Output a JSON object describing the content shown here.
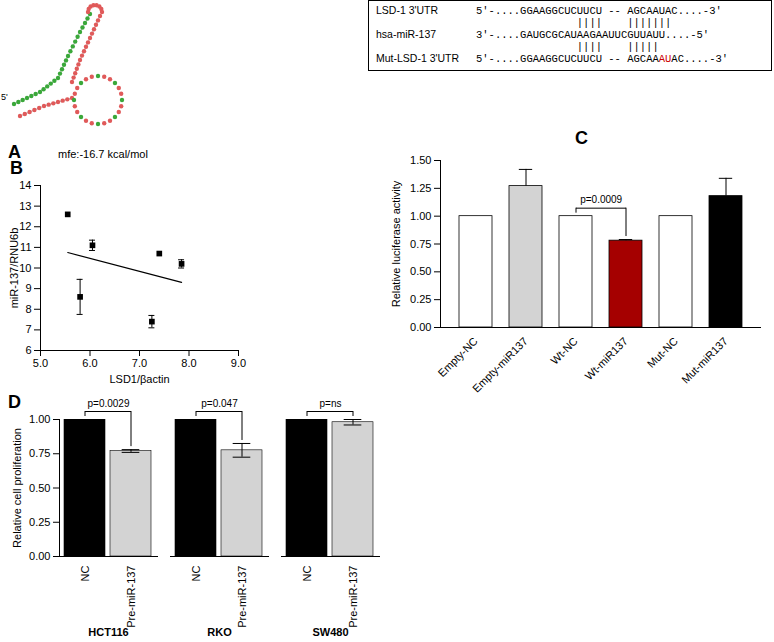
{
  "chart_data": [
    {
      "type": "diagram",
      "title": "A",
      "structure_label": "5'",
      "mfe": "mfe:-16.7 kcal/mol",
      "alignment": [
        {
          "label": "LSD-1 3'UTR",
          "segments": [
            {
              "text": "5'-....GGAAGGCUCUUCU -- AGCAAUAC....-3'",
              "color": "#000000"
            }
          ]
        },
        {
          "pairs": [
            "||||",
            "|||||||"
          ]
        },
        {
          "label": "hsa-miR-137",
          "segments": [
            {
              "text": "3'-....GAUGCGCAUAAGAAUUCGUUAUU....-5'",
              "color": "#000000"
            }
          ]
        },
        {
          "pairs": [
            "||||",
            "|||||"
          ]
        },
        {
          "label": "Mut-LSD-1 3'UTR",
          "segments": [
            {
              "text": "5'-....GGAAGGCUCUUCU -- AGCAA",
              "color": "#000000"
            },
            {
              "text": "AU",
              "color": "#cc0000"
            },
            {
              "text": "AC....-3'",
              "color": "#000000"
            }
          ]
        }
      ]
    },
    {
      "type": "scatter",
      "title": "B",
      "xlabel": "LSD1/βactin",
      "ylabel": "miR-137/RNU6b",
      "xlim": [
        5,
        9
      ],
      "xticks": [
        5,
        6,
        7,
        8,
        9
      ],
      "ylim": [
        6,
        14
      ],
      "yticks": [
        6,
        7,
        8,
        9,
        10,
        11,
        12,
        13,
        14
      ],
      "series": [
        {
          "type": "scatter",
          "marker": "square",
          "color": "#000000",
          "x": [
            5.55,
            5.8,
            6.05,
            7.25,
            7.4,
            7.85
          ],
          "values": [
            12.6,
            8.6,
            11.1,
            7.4,
            10.7,
            10.2
          ],
          "errors": [
            0,
            0.85,
            0.25,
            0.3,
            0,
            0.2
          ]
        },
        {
          "type": "line",
          "color": "#000000",
          "x": [
            5.55,
            7.85
          ],
          "values": [
            10.75,
            9.3
          ]
        }
      ]
    },
    {
      "type": "bar",
      "title": "C",
      "ylabel": "Relative luciferase activity",
      "categories": [
        "Empty-NC",
        "Empty-miR137",
        "Wt-NC",
        "Wt-miR137",
        "Mut-NC",
        "Mut-miR137"
      ],
      "values": [
        1,
        1.27,
        1,
        0.78,
        1,
        1.18
      ],
      "errors": [
        0,
        0.15,
        0,
        0.01,
        0,
        0.16
      ],
      "colors": [
        "#ffffff",
        "#d3d3d3",
        "#ffffff",
        "#a50000",
        "#ffffff",
        "#000000"
      ],
      "ylim": [
        0,
        1.5
      ],
      "yticks": [
        {
          "value": 0,
          "label": "0.00"
        },
        {
          "value": 0.25,
          "label": "0.25"
        },
        {
          "value": 0.5,
          "label": "0.50"
        },
        {
          "value": 0.75,
          "label": "0.75"
        },
        {
          "value": 1,
          "label": "1.00"
        },
        {
          "value": 1.25,
          "label": "1.25"
        },
        {
          "value": 1.5,
          "label": "1.50"
        }
      ],
      "annotations": [
        {
          "text": "p=0.0009",
          "from": "Wt-NC",
          "to": "Wt-miR137"
        }
      ]
    },
    {
      "type": "bar",
      "title": "D",
      "ylabel": "Relative cell proliferation",
      "categories": [
        "HCT116",
        "RKO",
        "SW480"
      ],
      "series": [
        {
          "name": "NC",
          "color": "#000000",
          "values": [
            1,
            1,
            1
          ],
          "errors": [
            0,
            0,
            0
          ]
        },
        {
          "name": "Pre-miR-137",
          "color": "#d3d3d3",
          "values": [
            0.77,
            0.775,
            0.98
          ],
          "errors": [
            0.01,
            0.05,
            0.02
          ]
        }
      ],
      "ylim": [
        0,
        1
      ],
      "yticks": [
        {
          "value": 0,
          "label": "0.00"
        },
        {
          "value": 0.25,
          "label": "0.25"
        },
        {
          "value": 0.5,
          "label": "0.50"
        },
        {
          "value": 0.75,
          "label": "0.75"
        },
        {
          "value": 1,
          "label": "1.00"
        }
      ],
      "annotations": [
        {
          "group": "HCT116",
          "text": "p=0.0029"
        },
        {
          "group": "RKO",
          "text": "p=0.047"
        },
        {
          "group": "SW480",
          "text": "p=ns"
        }
      ]
    }
  ]
}
